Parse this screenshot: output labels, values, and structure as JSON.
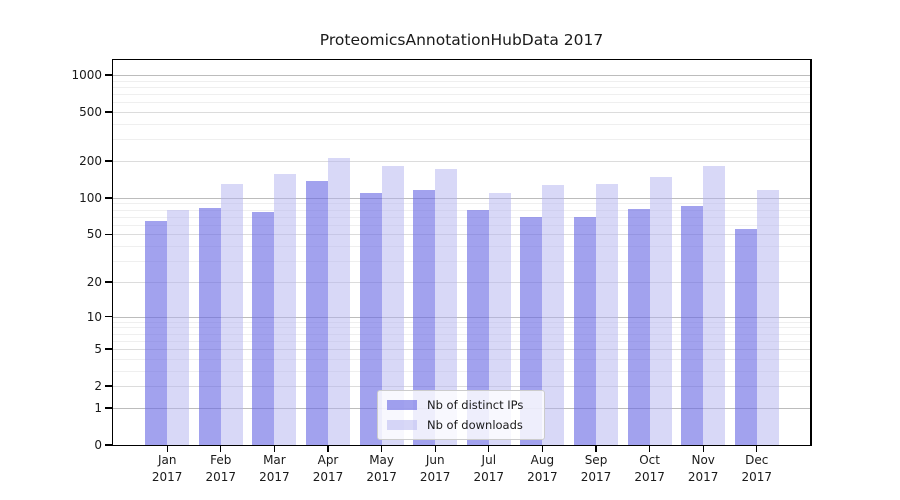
{
  "chart_data": {
    "type": "bar",
    "title": "ProteomicsAnnotationHubData 2017",
    "categories": [
      "Jan",
      "Feb",
      "Mar",
      "Apr",
      "May",
      "Jun",
      "Jul",
      "Aug",
      "Sep",
      "Oct",
      "Nov",
      "Dec"
    ],
    "category_year": "2017",
    "series": [
      {
        "name": "Nb of distinct IPs",
        "color": "#6969e4",
        "color_rgba": "rgba(105,105,228,0.62)",
        "values": [
          64,
          83,
          77,
          137,
          110,
          115,
          79,
          70,
          69,
          81,
          86,
          56
        ]
      },
      {
        "name": "Nb of downloads",
        "color": "#b2b2f0",
        "color_rgba": "rgba(178,178,240,0.5)",
        "values": [
          79,
          130,
          156,
          210,
          182,
          172,
          109,
          127,
          129,
          147,
          182,
          115
        ]
      }
    ],
    "xlabel": "",
    "ylabel": "",
    "y_axis": {
      "scale": "log10(value+1)",
      "range": [
        0,
        1000
      ],
      "ticks": [
        0,
        1,
        2,
        5,
        10,
        20,
        50,
        100,
        200,
        500,
        1000
      ],
      "minor_ticks": [
        3,
        4,
        6,
        7,
        8,
        9,
        30,
        40,
        60,
        70,
        80,
        90,
        300,
        400,
        600,
        700,
        800,
        900
      ]
    },
    "grid": true,
    "legend_position": "inside-bottom-center",
    "colors": {
      "grid_decade": "#bcbcbc",
      "grid_labeled": "#dcdcdc",
      "grid_minor": "#efefef",
      "axis": "#000000",
      "text": "#1a1a1a",
      "background": "#ffffff"
    }
  }
}
